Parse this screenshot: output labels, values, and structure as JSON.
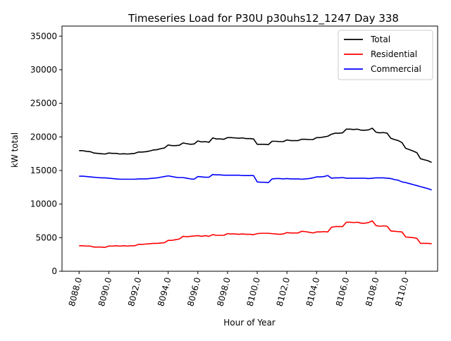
{
  "chart_data": {
    "type": "line",
    "title": "Timeseries Load for P30U p30uhs12_1247  Day 338",
    "xlabel": "Hour of Year",
    "ylabel": "kW total",
    "xlim": [
      8086.85,
      8112.15
    ],
    "ylim": [
      0,
      36500
    ],
    "x_ticks": [
      8088,
      8090,
      8092,
      8094,
      8096,
      8098,
      8100,
      8102,
      8104,
      8106,
      8108,
      8110
    ],
    "x_tick_labels": [
      "8088.0",
      "8090.0",
      "8092.0",
      "8094.0",
      "8096.0",
      "8098.0",
      "8100.0",
      "8102.0",
      "8104.0",
      "8106.0",
      "8108.0",
      "8110.0"
    ],
    "y_ticks": [
      0,
      5000,
      10000,
      15000,
      20000,
      25000,
      30000,
      35000
    ],
    "y_tick_labels": [
      "0",
      "5000",
      "10000",
      "15000",
      "20000",
      "25000",
      "30000",
      "35000"
    ],
    "legend_position": "top-right",
    "x": [
      8088.0,
      8088.25,
      8088.5,
      8088.75,
      8089.0,
      8089.25,
      8089.5,
      8089.75,
      8090.0,
      8090.25,
      8090.5,
      8090.75,
      8091.0,
      8091.25,
      8091.5,
      8091.75,
      8092.0,
      8092.25,
      8092.5,
      8092.75,
      8093.0,
      8093.25,
      8093.5,
      8093.75,
      8094.0,
      8094.25,
      8094.5,
      8094.75,
      8095.0,
      8095.25,
      8095.5,
      8095.75,
      8096.0,
      8096.25,
      8096.5,
      8096.75,
      8097.0,
      8097.25,
      8097.5,
      8097.75,
      8098.0,
      8098.25,
      8098.5,
      8098.75,
      8099.0,
      8099.25,
      8099.5,
      8099.75,
      8100.0,
      8100.25,
      8100.5,
      8100.75,
      8101.0,
      8101.25,
      8101.5,
      8101.75,
      8102.0,
      8102.25,
      8102.5,
      8102.75,
      8103.0,
      8103.25,
      8103.5,
      8103.75,
      8104.0,
      8104.25,
      8104.5,
      8104.75,
      8105.0,
      8105.25,
      8105.5,
      8105.75,
      8106.0,
      8106.25,
      8106.5,
      8106.75,
      8107.0,
      8107.25,
      8107.5,
      8107.75,
      8108.0,
      8108.25,
      8108.5,
      8108.75,
      8109.0,
      8109.25,
      8109.5,
      8109.75,
      8110.0,
      8110.25,
      8110.5,
      8110.75,
      8111.0,
      8111.25,
      8111.5,
      8111.75
    ],
    "series": [
      {
        "name": "Total",
        "color": "#000000",
        "values": [
          17950,
          17950,
          17850,
          17800,
          17600,
          17550,
          17500,
          17450,
          17600,
          17550,
          17550,
          17450,
          17500,
          17450,
          17500,
          17550,
          17750,
          17750,
          17800,
          17900,
          18050,
          18100,
          18250,
          18350,
          18800,
          18700,
          18700,
          18750,
          19100,
          19000,
          18900,
          18950,
          19400,
          19250,
          19300,
          19200,
          19850,
          19700,
          19700,
          19650,
          19900,
          19900,
          19850,
          19800,
          19850,
          19750,
          19750,
          19700,
          18900,
          18900,
          18900,
          18850,
          19350,
          19350,
          19300,
          19300,
          19550,
          19450,
          19450,
          19450,
          19650,
          19650,
          19600,
          19600,
          19900,
          19900,
          20000,
          20100,
          20400,
          20550,
          20550,
          20600,
          21150,
          21150,
          21100,
          21150,
          21000,
          21000,
          21050,
          21300,
          20700,
          20600,
          20650,
          20550,
          19800,
          19600,
          19450,
          19150,
          18300,
          18100,
          17900,
          17650,
          16750,
          16600,
          16450,
          16200
        ]
      },
      {
        "name": "Residential",
        "color": "#ff0000",
        "values": [
          3800,
          3800,
          3750,
          3750,
          3600,
          3600,
          3600,
          3550,
          3750,
          3750,
          3800,
          3750,
          3800,
          3750,
          3800,
          3800,
          4000,
          4000,
          4050,
          4100,
          4150,
          4150,
          4200,
          4250,
          4600,
          4600,
          4700,
          4800,
          5200,
          5150,
          5200,
          5250,
          5300,
          5200,
          5300,
          5200,
          5450,
          5350,
          5350,
          5350,
          5600,
          5550,
          5550,
          5500,
          5550,
          5500,
          5500,
          5450,
          5600,
          5650,
          5650,
          5650,
          5600,
          5550,
          5500,
          5550,
          5750,
          5700,
          5700,
          5700,
          5950,
          5900,
          5800,
          5700,
          5850,
          5850,
          5900,
          5850,
          6550,
          6650,
          6650,
          6650,
          7300,
          7300,
          7250,
          7300,
          7150,
          7150,
          7250,
          7500,
          6800,
          6700,
          6750,
          6700,
          6000,
          5950,
          5900,
          5850,
          5100,
          5050,
          5000,
          4900,
          4150,
          4150,
          4150,
          4100
        ]
      },
      {
        "name": "Commercial",
        "color": "#0000ff",
        "values": [
          14150,
          14150,
          14100,
          14050,
          14000,
          13950,
          13900,
          13900,
          13850,
          13800,
          13750,
          13700,
          13700,
          13700,
          13700,
          13700,
          13750,
          13750,
          13750,
          13800,
          13850,
          13900,
          14000,
          14100,
          14200,
          14100,
          14000,
          13950,
          13950,
          13850,
          13750,
          13700,
          14100,
          14050,
          14000,
          14000,
          14400,
          14350,
          14350,
          14300,
          14300,
          14300,
          14300,
          14300,
          14250,
          14250,
          14250,
          14250,
          13300,
          13250,
          13250,
          13200,
          13750,
          13800,
          13800,
          13750,
          13800,
          13750,
          13750,
          13750,
          13700,
          13750,
          13800,
          13900,
          14050,
          14050,
          14100,
          14250,
          13850,
          13900,
          13900,
          13950,
          13850,
          13850,
          13850,
          13850,
          13850,
          13850,
          13800,
          13850,
          13900,
          13900,
          13900,
          13850,
          13800,
          13650,
          13550,
          13300,
          13200,
          13050,
          12900,
          12750,
          12600,
          12450,
          12300,
          12100
        ]
      }
    ]
  }
}
